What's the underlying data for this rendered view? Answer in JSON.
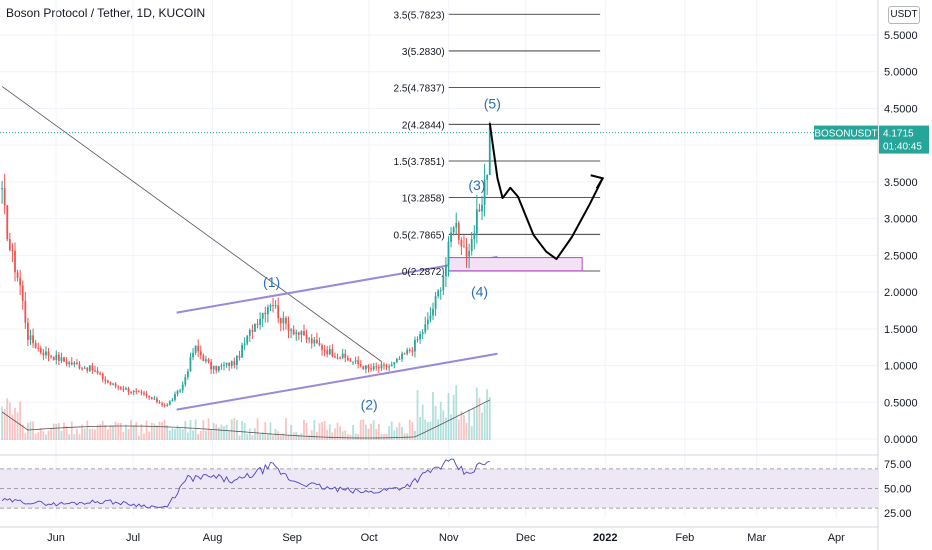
{
  "header": {
    "title": "Boson Protocol / Tether, 1D, KUCOIN",
    "currency": "USDT"
  },
  "colors": {
    "up": "#26a69a",
    "down": "#ef5350",
    "wave_label": "#2a6fb0",
    "channel": "#9c88d8",
    "rsi_line": "#4b45c2",
    "rsi_band": "#ede7f6",
    "badge": "#26a69a",
    "zone": "#f3e1f5",
    "zone_border": "#b04fc0"
  },
  "last_price": {
    "symbol": "BOSONUSDT",
    "price": "4.1715",
    "countdown": "01:40:45",
    "value": 4.1715
  },
  "chart_data": {
    "type": "candlestick",
    "title": "Boson Protocol / Tether, 1D, KUCOIN",
    "y_axis": {
      "ticks": [
        "5.5000",
        "5.0000",
        "4.5000",
        "4.0000",
        "3.5000",
        "3.0000",
        "2.5000",
        "2.0000",
        "1.5000",
        "1.0000",
        "0.5000",
        "0.0000"
      ],
      "tick_values": [
        5.5,
        5.0,
        4.5,
        4.0,
        3.5,
        3.0,
        2.5,
        2.0,
        1.5,
        1.0,
        0.5,
        0.0
      ],
      "range": [
        0,
        5.85
      ]
    },
    "x_axis": {
      "ticks": [
        "Jun",
        "Jul",
        "Aug",
        "Sep",
        "Oct",
        "Nov",
        "Dec",
        "2022",
        "Feb",
        "Mar",
        "Apr"
      ],
      "tick_dates": [
        "2021-06-01",
        "2021-07-01",
        "2021-08-01",
        "2021-09-01",
        "2021-10-01",
        "2021-11-01",
        "2021-12-01",
        "2022-01-01",
        "2022-02-01",
        "2022-03-01",
        "2022-04-01"
      ]
    },
    "price_series_anchors": [
      [
        "2021-05-11",
        3.3
      ],
      [
        "2021-05-14",
        2.6
      ],
      [
        "2021-05-18",
        2.1
      ],
      [
        "2021-05-21",
        1.4
      ],
      [
        "2021-05-26",
        1.2
      ],
      [
        "2021-06-05",
        1.05
      ],
      [
        "2021-06-15",
        0.95
      ],
      [
        "2021-06-22",
        0.75
      ],
      [
        "2021-07-05",
        0.6
      ],
      [
        "2021-07-14",
        0.45
      ],
      [
        "2021-07-20",
        0.7
      ],
      [
        "2021-07-25",
        1.25
      ],
      [
        "2021-08-01",
        0.95
      ],
      [
        "2021-08-10",
        1.05
      ],
      [
        "2021-08-17",
        1.55
      ],
      [
        "2021-08-24",
        1.9
      ],
      [
        "2021-08-28",
        1.6
      ],
      [
        "2021-09-05",
        1.4
      ],
      [
        "2021-09-15",
        1.2
      ],
      [
        "2021-09-25",
        1.05
      ],
      [
        "2021-10-01",
        0.95
      ],
      [
        "2021-10-10",
        1.0
      ],
      [
        "2021-10-18",
        1.25
      ],
      [
        "2021-10-24",
        1.6
      ],
      [
        "2021-10-28",
        2.0
      ],
      [
        "2021-10-31",
        2.4
      ],
      [
        "2021-11-03",
        3.0
      ],
      [
        "2021-11-06",
        2.7
      ],
      [
        "2021-11-09",
        2.45
      ],
      [
        "2021-11-12",
        3.0
      ],
      [
        "2021-11-14",
        3.3
      ],
      [
        "2021-11-16",
        3.7
      ],
      [
        "2021-11-17",
        4.17
      ]
    ],
    "fib_levels": [
      {
        "label": "3.5(5.7823)",
        "value": 5.7823
      },
      {
        "label": "3(5.2830)",
        "value": 5.283
      },
      {
        "label": "2.5(4.7837)",
        "value": 4.7837
      },
      {
        "label": "2(4.2844)",
        "value": 4.2844
      },
      {
        "label": "1.5(3.7851)",
        "value": 3.7851
      },
      {
        "label": "1(3.2858)",
        "value": 3.2858
      },
      {
        "label": "0.5(2.7865)",
        "value": 2.7865
      },
      {
        "label": "0(2.2872)",
        "value": 2.2872
      }
    ],
    "wave_labels": [
      {
        "label": "(1)",
        "date": "2021-08-24",
        "value": 2.07
      },
      {
        "label": "(2)",
        "date": "2021-10-01",
        "value": 0.4
      },
      {
        "label": "(3)",
        "date": "2021-11-12",
        "value": 3.39
      },
      {
        "label": "(4)",
        "date": "2021-11-13",
        "value": 1.94
      },
      {
        "label": "(5)",
        "date": "2021-11-18",
        "value": 4.5
      }
    ],
    "support_zone": {
      "from_date": "2021-11-01",
      "to_date": "2021-12-23",
      "low": 2.29,
      "high": 2.47
    },
    "channel_upper": [
      [
        "2021-07-18",
        1.72
      ],
      [
        "2021-11-20",
        2.48
      ]
    ],
    "channel_lower": [
      [
        "2021-07-18",
        0.4
      ],
      [
        "2021-11-20",
        1.16
      ]
    ],
    "trendline": [
      [
        "2021-05-11",
        4.8
      ],
      [
        "2021-10-06",
        1.05
      ]
    ],
    "projection_path": [
      [
        "2021-11-17",
        4.3
      ],
      [
        "2021-11-20",
        3.55
      ],
      [
        "2021-11-22",
        3.28
      ],
      [
        "2021-11-25",
        3.42
      ],
      [
        "2021-11-28",
        3.3
      ],
      [
        "2021-12-04",
        2.78
      ],
      [
        "2021-12-09",
        2.55
      ],
      [
        "2021-12-13",
        2.45
      ],
      [
        "2021-12-19",
        2.75
      ],
      [
        "2021-12-26",
        3.2
      ],
      [
        "2021-12-31",
        3.55
      ]
    ],
    "rsi": {
      "ticks": [
        "75.00",
        "50.00",
        "25.00"
      ],
      "tick_values": [
        75,
        50,
        25
      ],
      "overbought": 70,
      "oversold": 30,
      "middle": 50,
      "anchors": [
        [
          "2021-05-11",
          38
        ],
        [
          "2021-06-01",
          34
        ],
        [
          "2021-06-20",
          37
        ],
        [
          "2021-07-14",
          30
        ],
        [
          "2021-07-22",
          60
        ],
        [
          "2021-08-01",
          62
        ],
        [
          "2021-08-10",
          57
        ],
        [
          "2021-08-24",
          73
        ],
        [
          "2021-09-01",
          58
        ],
        [
          "2021-09-15",
          50
        ],
        [
          "2021-10-01",
          46
        ],
        [
          "2021-10-15",
          52
        ],
        [
          "2021-10-25",
          68
        ],
        [
          "2021-11-02",
          78
        ],
        [
          "2021-11-08",
          64
        ],
        [
          "2021-11-12",
          72
        ],
        [
          "2021-11-17",
          77
        ]
      ]
    }
  }
}
